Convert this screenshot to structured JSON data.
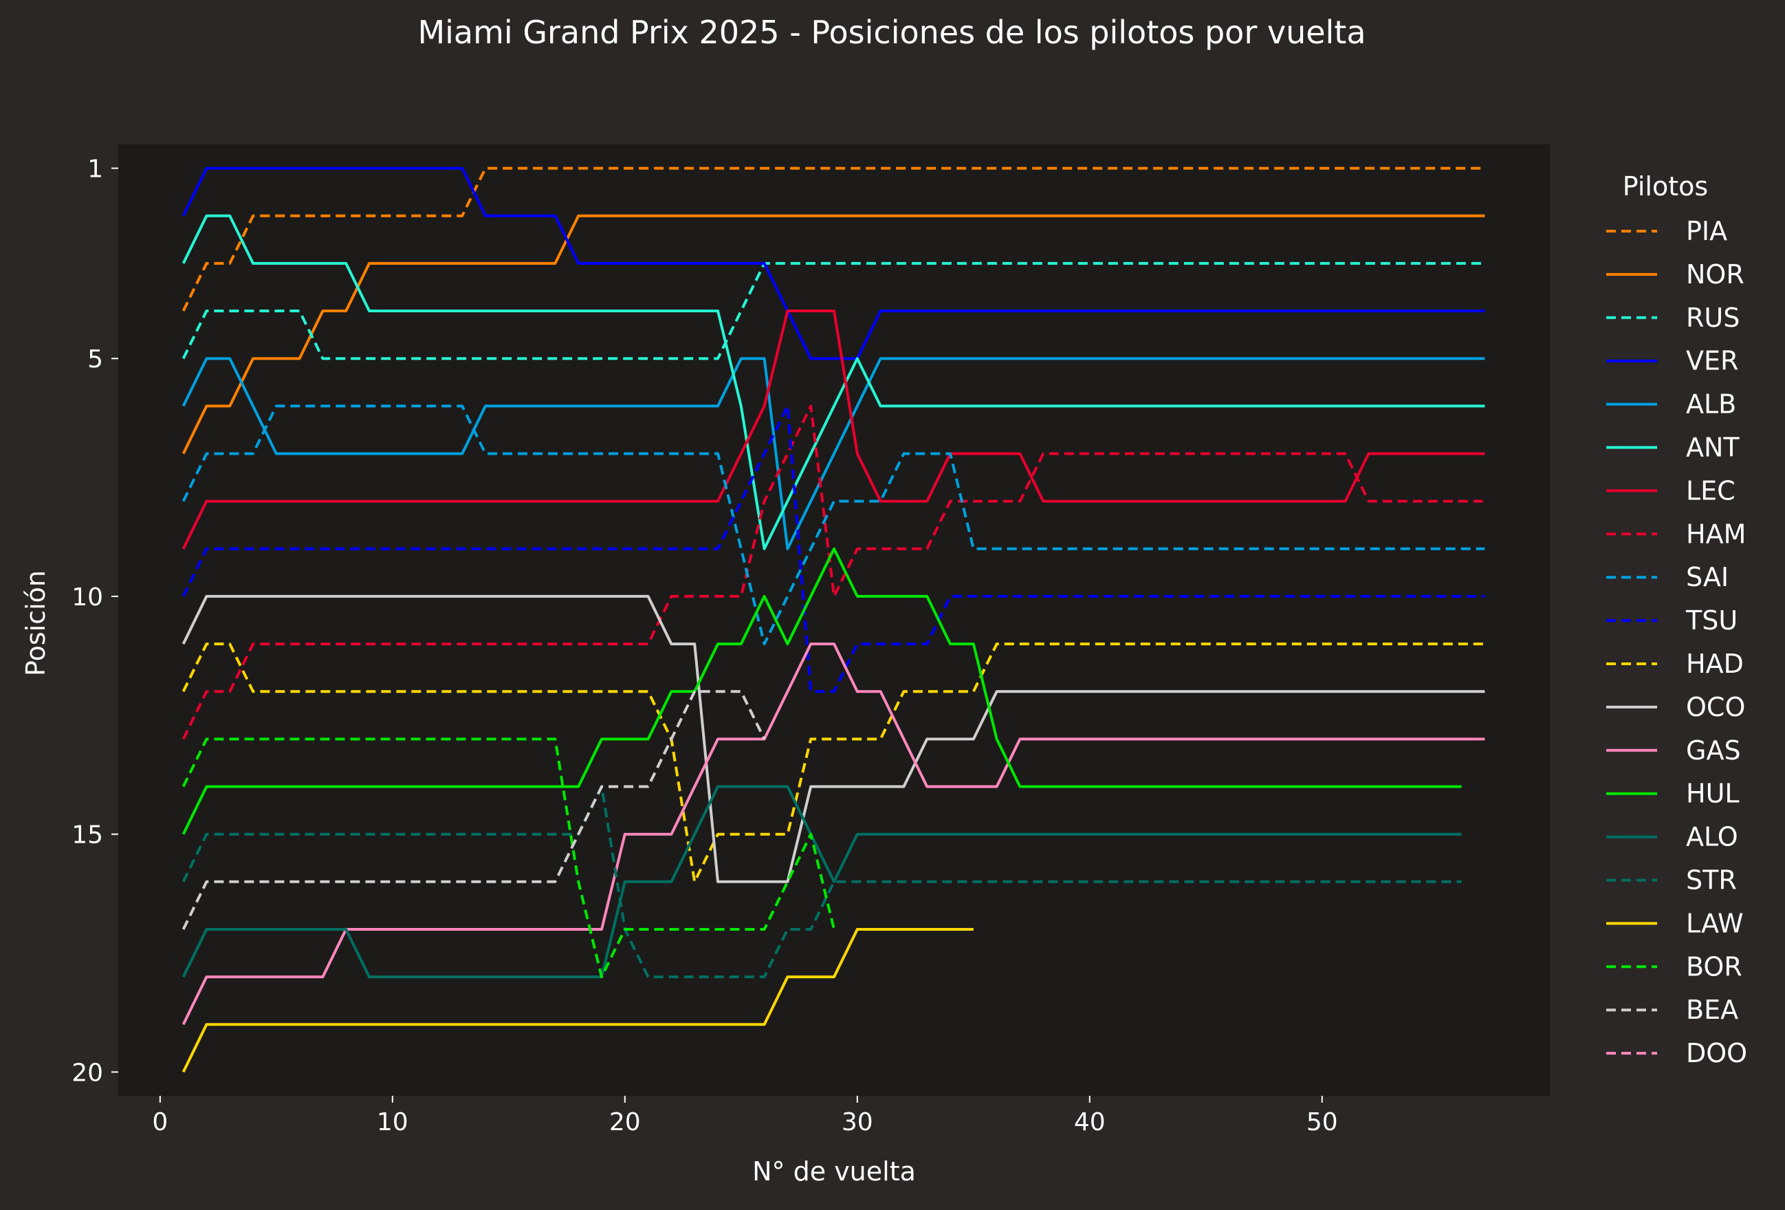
{
  "chart_data": {
    "type": "line",
    "title": "Miami Grand Prix 2025 - Posiciones de los pilotos por vuelta",
    "xlabel": "N° de vuelta",
    "ylabel": "Posición",
    "xlim": [
      -1.8,
      59.8
    ],
    "ylim": [
      20.5,
      0.5
    ],
    "y_inverted": true,
    "xticks": [
      0,
      10,
      20,
      30,
      40,
      50
    ],
    "yticks": [
      1,
      5,
      10,
      15,
      20
    ],
    "grid": false,
    "legend": {
      "title": "Pilotos",
      "placement": "outside-right"
    },
    "colors": {
      "figure_background": "#2a2726",
      "axes_background": "#1c1b1a",
      "text": "#ffffff"
    },
    "series": [
      {
        "name": "PIA",
        "color": "#ff8000",
        "dashed": true,
        "x0": 1,
        "positions": [
          4,
          3,
          3,
          2,
          2,
          2,
          2,
          2,
          2,
          2,
          2,
          2,
          2,
          1,
          1,
          1,
          1,
          1,
          1,
          1,
          1,
          1,
          1,
          1,
          1,
          1,
          1,
          1,
          1,
          1,
          1,
          1,
          1,
          1,
          1,
          1,
          1,
          1,
          1,
          1,
          1,
          1,
          1,
          1,
          1,
          1,
          1,
          1,
          1,
          1,
          1,
          1,
          1,
          1,
          1,
          1,
          1
        ]
      },
      {
        "name": "NOR",
        "color": "#ff8000",
        "dashed": false,
        "x0": 1,
        "positions": [
          7,
          6,
          6,
          5,
          5,
          5,
          4,
          4,
          3,
          3,
          3,
          3,
          3,
          3,
          3,
          3,
          3,
          2,
          2,
          2,
          2,
          2,
          2,
          2,
          2,
          2,
          2,
          2,
          2,
          2,
          2,
          2,
          2,
          2,
          2,
          2,
          2,
          2,
          2,
          2,
          2,
          2,
          2,
          2,
          2,
          2,
          2,
          2,
          2,
          2,
          2,
          2,
          2,
          2,
          2,
          2,
          2
        ]
      },
      {
        "name": "RUS",
        "color": "#27f4d2",
        "dashed": true,
        "x0": 1,
        "positions": [
          5,
          4,
          4,
          4,
          4,
          4,
          5,
          5,
          5,
          5,
          5,
          5,
          5,
          5,
          5,
          5,
          5,
          5,
          5,
          5,
          5,
          5,
          5,
          5,
          4,
          3,
          3,
          3,
          3,
          3,
          3,
          3,
          3,
          3,
          3,
          3,
          3,
          3,
          3,
          3,
          3,
          3,
          3,
          3,
          3,
          3,
          3,
          3,
          3,
          3,
          3,
          3,
          3,
          3,
          3,
          3,
          3
        ]
      },
      {
        "name": "VER",
        "color": "#0000ff",
        "dashed": false,
        "x0": 1,
        "positions": [
          2,
          1,
          1,
          1,
          1,
          1,
          1,
          1,
          1,
          1,
          1,
          1,
          1,
          2,
          2,
          2,
          2,
          3,
          3,
          3,
          3,
          3,
          3,
          3,
          3,
          3,
          4,
          5,
          5,
          5,
          4,
          4,
          4,
          4,
          4,
          4,
          4,
          4,
          4,
          4,
          4,
          4,
          4,
          4,
          4,
          4,
          4,
          4,
          4,
          4,
          4,
          4,
          4,
          4,
          4,
          4,
          4
        ]
      },
      {
        "name": "ALB",
        "color": "#00a0de",
        "dashed": false,
        "x0": 1,
        "positions": [
          6,
          5,
          5,
          6,
          7,
          7,
          7,
          7,
          7,
          7,
          7,
          7,
          7,
          6,
          6,
          6,
          6,
          6,
          6,
          6,
          6,
          6,
          6,
          6,
          5,
          5,
          9,
          8,
          7,
          6,
          5,
          5,
          5,
          5,
          5,
          5,
          5,
          5,
          5,
          5,
          5,
          5,
          5,
          5,
          5,
          5,
          5,
          5,
          5,
          5,
          5,
          5,
          5,
          5,
          5,
          5,
          5
        ]
      },
      {
        "name": "ANT",
        "color": "#27f4d2",
        "dashed": false,
        "x0": 1,
        "positions": [
          3,
          2,
          2,
          3,
          3,
          3,
          3,
          3,
          4,
          4,
          4,
          4,
          4,
          4,
          4,
          4,
          4,
          4,
          4,
          4,
          4,
          4,
          4,
          4,
          6,
          9,
          8,
          7,
          6,
          5,
          6,
          6,
          6,
          6,
          6,
          6,
          6,
          6,
          6,
          6,
          6,
          6,
          6,
          6,
          6,
          6,
          6,
          6,
          6,
          6,
          6,
          6,
          6,
          6,
          6,
          6,
          6
        ]
      },
      {
        "name": "LEC",
        "color": "#e8002d",
        "dashed": false,
        "x0": 1,
        "positions": [
          9,
          8,
          8,
          8,
          8,
          8,
          8,
          8,
          8,
          8,
          8,
          8,
          8,
          8,
          8,
          8,
          8,
          8,
          8,
          8,
          8,
          8,
          8,
          8,
          7,
          6,
          4,
          4,
          4,
          7,
          8,
          8,
          8,
          7,
          7,
          7,
          7,
          8,
          8,
          8,
          8,
          8,
          8,
          8,
          8,
          8,
          8,
          8,
          8,
          8,
          8,
          7,
          7,
          7,
          7,
          7,
          7
        ]
      },
      {
        "name": "HAM",
        "color": "#e8002d",
        "dashed": true,
        "x0": 1,
        "positions": [
          13,
          12,
          12,
          11,
          11,
          11,
          11,
          11,
          11,
          11,
          11,
          11,
          11,
          11,
          11,
          11,
          11,
          11,
          11,
          11,
          11,
          10,
          10,
          10,
          10,
          8,
          7,
          6,
          10,
          9,
          9,
          9,
          9,
          8,
          8,
          8,
          8,
          7,
          7,
          7,
          7,
          7,
          7,
          7,
          7,
          7,
          7,
          7,
          7,
          7,
          7,
          8,
          8,
          8,
          8,
          8,
          8
        ]
      },
      {
        "name": "SAI",
        "color": "#00a0de",
        "dashed": true,
        "x0": 1,
        "positions": [
          8,
          7,
          7,
          7,
          6,
          6,
          6,
          6,
          6,
          6,
          6,
          6,
          6,
          7,
          7,
          7,
          7,
          7,
          7,
          7,
          7,
          7,
          7,
          7,
          9,
          11,
          10,
          9,
          8,
          8,
          8,
          7,
          7,
          7,
          9,
          9,
          9,
          9,
          9,
          9,
          9,
          9,
          9,
          9,
          9,
          9,
          9,
          9,
          9,
          9,
          9,
          9,
          9,
          9,
          9,
          9,
          9
        ]
      },
      {
        "name": "TSU",
        "color": "#0000ff",
        "dashed": true,
        "x0": 1,
        "positions": [
          10,
          9,
          9,
          9,
          9,
          9,
          9,
          9,
          9,
          9,
          9,
          9,
          9,
          9,
          9,
          9,
          9,
          9,
          9,
          9,
          9,
          9,
          9,
          9,
          8,
          7,
          6,
          12,
          12,
          11,
          11,
          11,
          11,
          10,
          10,
          10,
          10,
          10,
          10,
          10,
          10,
          10,
          10,
          10,
          10,
          10,
          10,
          10,
          10,
          10,
          10,
          10,
          10,
          10,
          10,
          10,
          10
        ]
      },
      {
        "name": "HAD",
        "color": "#ffd700",
        "dashed": true,
        "x0": 1,
        "positions": [
          12,
          11,
          11,
          12,
          12,
          12,
          12,
          12,
          12,
          12,
          12,
          12,
          12,
          12,
          12,
          12,
          12,
          12,
          12,
          12,
          12,
          13,
          16,
          15,
          15,
          15,
          15,
          13,
          13,
          13,
          13,
          12,
          12,
          12,
          12,
          11,
          11,
          11,
          11,
          11,
          11,
          11,
          11,
          11,
          11,
          11,
          11,
          11,
          11,
          11,
          11,
          11,
          11,
          11,
          11,
          11,
          11
        ]
      },
      {
        "name": "OCO",
        "color": "#cfcfcf",
        "dashed": false,
        "x0": 1,
        "positions": [
          11,
          10,
          10,
          10,
          10,
          10,
          10,
          10,
          10,
          10,
          10,
          10,
          10,
          10,
          10,
          10,
          10,
          10,
          10,
          10,
          10,
          11,
          11,
          16,
          16,
          16,
          16,
          14,
          14,
          14,
          14,
          14,
          13,
          13,
          13,
          12,
          12,
          12,
          12,
          12,
          12,
          12,
          12,
          12,
          12,
          12,
          12,
          12,
          12,
          12,
          12,
          12,
          12,
          12,
          12,
          12,
          12
        ]
      },
      {
        "name": "GAS",
        "color": "#ff87bc",
        "dashed": false,
        "x0": 1,
        "positions": [
          19,
          18,
          18,
          18,
          18,
          18,
          18,
          17,
          17,
          17,
          17,
          17,
          17,
          17,
          17,
          17,
          17,
          17,
          17,
          15,
          15,
          15,
          14,
          13,
          13,
          13,
          12,
          11,
          11,
          12,
          12,
          13,
          14,
          14,
          14,
          14,
          13,
          13,
          13,
          13,
          13,
          13,
          13,
          13,
          13,
          13,
          13,
          13,
          13,
          13,
          13,
          13,
          13,
          13,
          13,
          13,
          13
        ]
      },
      {
        "name": "HUL",
        "color": "#00e701",
        "dashed": false,
        "x0": 1,
        "positions": [
          15,
          14,
          14,
          14,
          14,
          14,
          14,
          14,
          14,
          14,
          14,
          14,
          14,
          14,
          14,
          14,
          14,
          14,
          13,
          13,
          13,
          12,
          12,
          11,
          11,
          10,
          11,
          10,
          9,
          10,
          10,
          10,
          10,
          11,
          11,
          13,
          14,
          14,
          14,
          14,
          14,
          14,
          14,
          14,
          14,
          14,
          14,
          14,
          14,
          14,
          14,
          14,
          14,
          14,
          14,
          14
        ]
      },
      {
        "name": "ALO",
        "color": "#006f62",
        "dashed": false,
        "x0": 1,
        "positions": [
          18,
          17,
          17,
          17,
          17,
          17,
          17,
          17,
          18,
          18,
          18,
          18,
          18,
          18,
          18,
          18,
          18,
          18,
          18,
          16,
          16,
          16,
          15,
          14,
          14,
          14,
          14,
          15,
          16,
          15,
          15,
          15,
          15,
          15,
          15,
          15,
          15,
          15,
          15,
          15,
          15,
          15,
          15,
          15,
          15,
          15,
          15,
          15,
          15,
          15,
          15,
          15,
          15,
          15,
          15,
          15
        ]
      },
      {
        "name": "STR",
        "color": "#006f62",
        "dashed": true,
        "x0": 1,
        "positions": [
          16,
          15,
          15,
          15,
          15,
          15,
          15,
          15,
          15,
          15,
          15,
          15,
          15,
          15,
          15,
          15,
          15,
          15,
          14,
          17,
          18,
          18,
          18,
          18,
          18,
          18,
          17,
          17,
          16,
          16,
          16,
          16,
          16,
          16,
          16,
          16,
          16,
          16,
          16,
          16,
          16,
          16,
          16,
          16,
          16,
          16,
          16,
          16,
          16,
          16,
          16,
          16,
          16,
          16,
          16,
          16
        ]
      },
      {
        "name": "LAW",
        "color": "#ffd700",
        "dashed": false,
        "x0": 1,
        "positions": [
          20,
          19,
          19,
          19,
          19,
          19,
          19,
          19,
          19,
          19,
          19,
          19,
          19,
          19,
          19,
          19,
          19,
          19,
          19,
          19,
          19,
          19,
          19,
          19,
          19,
          19,
          18,
          18,
          18,
          17,
          17,
          17,
          17,
          17,
          17
        ]
      },
      {
        "name": "BOR",
        "color": "#00e701",
        "dashed": true,
        "x0": 1,
        "positions": [
          14,
          13,
          13,
          13,
          13,
          13,
          13,
          13,
          13,
          13,
          13,
          13,
          13,
          13,
          13,
          13,
          13,
          16,
          18,
          17,
          17,
          17,
          17,
          17,
          17,
          17,
          16,
          15,
          17
        ]
      },
      {
        "name": "BEA",
        "color": "#cfcfcf",
        "dashed": true,
        "x0": 1,
        "positions": [
          17,
          16,
          16,
          16,
          16,
          16,
          16,
          16,
          16,
          16,
          16,
          16,
          16,
          16,
          16,
          16,
          16,
          15,
          14,
          14,
          14,
          13,
          12,
          12,
          12,
          13
        ]
      },
      {
        "name": "DOO",
        "color": "#ff87bc",
        "dashed": true,
        "x0": 1,
        "positions": []
      }
    ]
  }
}
